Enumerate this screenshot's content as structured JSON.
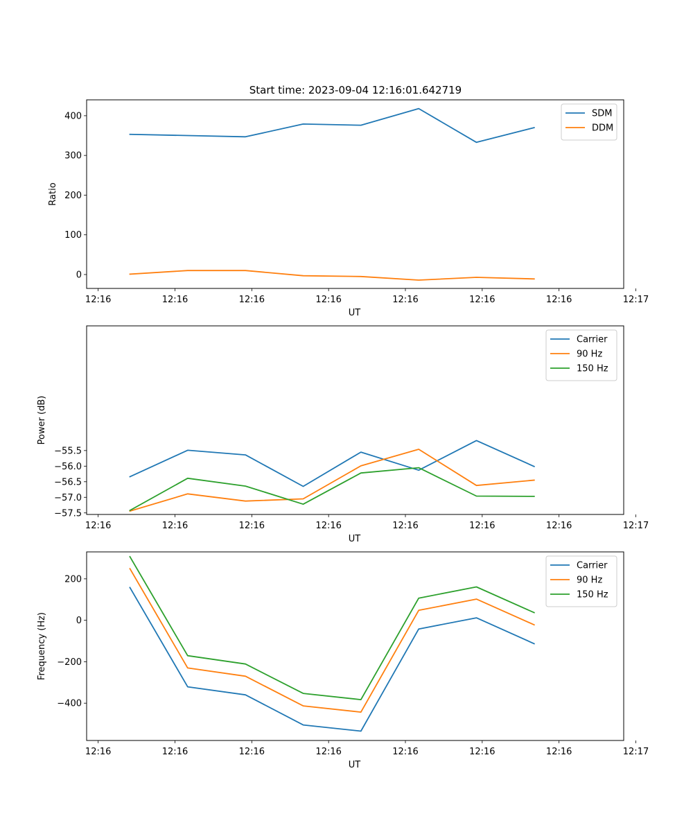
{
  "figure_title": "Start time: 2023-09-04 12:16:01.642719",
  "colors": {
    "blue": "#1f77b4",
    "orange": "#ff7f0e",
    "green": "#2ca02c"
  },
  "x_tick_labels": [
    "12:16",
    "12:16",
    "12:16",
    "12:16",
    "12:16",
    "12:16",
    "12:16"
  ],
  "x_last_tick_label": "12:17",
  "chart_data": [
    {
      "type": "line",
      "title": "Start time: 2023-09-04 12:16:01.642719",
      "xlabel": "UT",
      "ylabel": "Ratio",
      "xlim": [
        0,
        9.3
      ],
      "ylim": [
        -35,
        440
      ],
      "x": [
        0.75,
        1.75,
        2.75,
        3.75,
        4.75,
        5.75,
        6.75,
        7.75
      ],
      "y_ticks": [
        0,
        100,
        200,
        300,
        400
      ],
      "y_tick_labels": [
        "0",
        "100",
        "200",
        "300",
        "400"
      ],
      "legend": "upper-right",
      "series": [
        {
          "name": "SDM",
          "color": "#1f77b4",
          "values": [
            353,
            350,
            347,
            379,
            376,
            418,
            333,
            370
          ]
        },
        {
          "name": "DDM",
          "color": "#ff7f0e",
          "values": [
            1,
            10,
            10,
            -3,
            -5,
            -14,
            -7,
            -11
          ]
        }
      ]
    },
    {
      "type": "line",
      "title": "",
      "xlabel": "UT",
      "ylabel": "Power (dB)",
      "xlim": [
        0,
        9.3
      ],
      "ylim": [
        -57.55,
        -51.5
      ],
      "x": [
        0.75,
        1.75,
        2.75,
        3.75,
        4.75,
        5.75,
        6.75,
        7.75
      ],
      "y_ticks": [
        -57.5,
        -57.0,
        -56.5,
        -56.0,
        -55.5
      ],
      "y_tick_labels": [
        "−57.5",
        "−57.0",
        "−56.5",
        "−56.0",
        "−55.5"
      ],
      "legend": "upper-right",
      "series": [
        {
          "name": "Carrier",
          "color": "#1f77b4",
          "values": [
            -56.34,
            -55.49,
            -55.64,
            -56.65,
            -55.55,
            -56.13,
            -55.18,
            -56.01
          ]
        },
        {
          "name": "90 Hz",
          "color": "#ff7f0e",
          "values": [
            -57.44,
            -56.89,
            -57.12,
            -57.05,
            -55.99,
            -55.46,
            -56.62,
            -56.45
          ]
        },
        {
          "name": "150 Hz",
          "color": "#2ca02c",
          "values": [
            -57.42,
            -56.39,
            -56.64,
            -57.22,
            -56.22,
            -56.05,
            -56.96,
            -56.97
          ]
        }
      ]
    },
    {
      "type": "line",
      "title": "",
      "xlabel": "UT",
      "ylabel": "Frequency (Hz)",
      "xlim": [
        0,
        9.3
      ],
      "ylim": [
        -580,
        330
      ],
      "x": [
        0.75,
        1.75,
        2.75,
        3.75,
        4.75,
        5.75,
        6.75,
        7.75
      ],
      "y_ticks": [
        -400,
        -200,
        0,
        200
      ],
      "y_tick_labels": [
        "−400",
        "−200",
        "0",
        "200"
      ],
      "legend": "upper-right",
      "series": [
        {
          "name": "Carrier",
          "color": "#1f77b4",
          "values": [
            158,
            -321,
            -360,
            -505,
            -535,
            -42,
            12,
            -113
          ]
        },
        {
          "name": "90 Hz",
          "color": "#ff7f0e",
          "values": [
            249,
            -230,
            -270,
            -413,
            -443,
            48,
            102,
            -22
          ]
        },
        {
          "name": "150 Hz",
          "color": "#2ca02c",
          "values": [
            307,
            -171,
            -211,
            -353,
            -383,
            107,
            161,
            37
          ]
        }
      ]
    }
  ]
}
